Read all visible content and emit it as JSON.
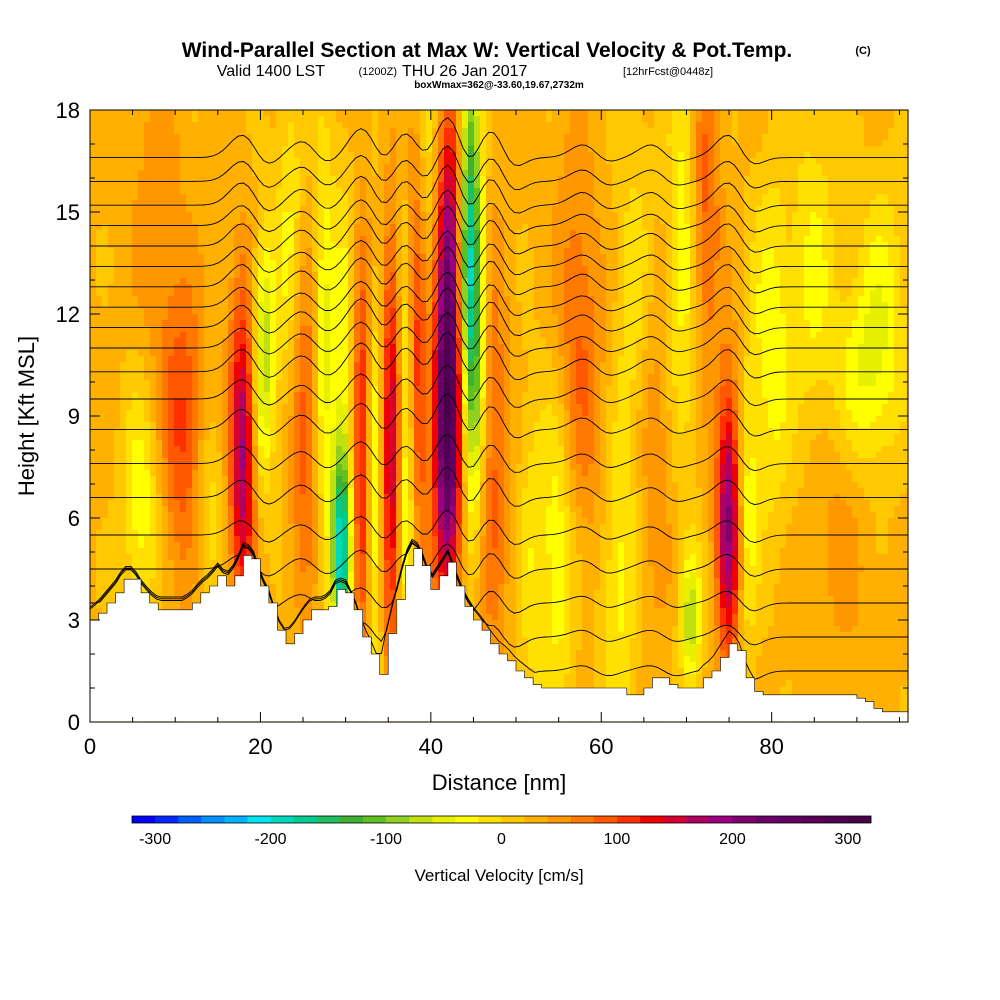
{
  "titles": {
    "main": "Wind-Parallel Section at Max W: Vertical Velocity & Pot.Temp.",
    "copyright": "(C)",
    "valid": "Valid 1400 LST",
    "valid_z": "(1200Z)",
    "valid_day": "THU 26 Jan 2017",
    "forecast": "[12hrFcst@0448z]",
    "box": "boxWmax=362@-33.60,19.67,2732m"
  },
  "chart_data": {
    "type": "heatmap",
    "title": "Wind-Parallel Section at Max W: Vertical Velocity & Pot.Temp.",
    "xlabel": "Distance [nm]",
    "ylabel": "Height [Kft MSL]",
    "xlim": [
      0,
      96
    ],
    "ylim": [
      0,
      18
    ],
    "x_ticks": [
      0,
      20,
      40,
      60,
      80
    ],
    "y_ticks": [
      0,
      3,
      6,
      9,
      12,
      15,
      18
    ],
    "colorbar": {
      "label": "Vertical Velocity [cm/s]",
      "min": -320,
      "max": 320,
      "step": 20,
      "tick_values": [
        -300,
        -200,
        -100,
        0,
        100,
        200,
        300
      ],
      "tick_labels": [
        "-300",
        "-200",
        "-100",
        "0",
        "100",
        "200",
        "300"
      ],
      "colors": [
        "#0000ff",
        "#0028ff",
        "#0060ff",
        "#0090ff",
        "#00b4ff",
        "#00e6f0",
        "#00d8c0",
        "#00cc90",
        "#20c060",
        "#40b030",
        "#60c020",
        "#90d020",
        "#c0e010",
        "#e6f000",
        "#ffff00",
        "#ffe000",
        "#ffc800",
        "#ffb000",
        "#ff9800",
        "#ff7800",
        "#ff5800",
        "#ff3000",
        "#f00000",
        "#d80030",
        "#b00060",
        "#9a0080",
        "#800070",
        "#680068",
        "#600060",
        "#580058",
        "#500050",
        "#480048"
      ]
    },
    "velocity_features": [
      {
        "x": 6,
        "y": 6.5,
        "w": 2.2,
        "h": 3.5,
        "value": -60
      },
      {
        "x": 11,
        "y": 8.5,
        "w": 2.5,
        "h": 4,
        "value": 80
      },
      {
        "x": 14,
        "y": 6.5,
        "w": 2,
        "h": 3,
        "value": -40
      },
      {
        "x": 18,
        "y": 8,
        "w": 1.6,
        "h": 4.5,
        "value": 170
      },
      {
        "x": 19.5,
        "y": 8.5,
        "w": 1.3,
        "h": 4,
        "value": -40
      },
      {
        "x": 20.5,
        "y": 11,
        "w": 1.3,
        "h": 3.5,
        "value": -90
      },
      {
        "x": 23.5,
        "y": 13,
        "w": 1.6,
        "h": 6,
        "value": -60
      },
      {
        "x": 25,
        "y": 9,
        "w": 2,
        "h": 5,
        "value": 80
      },
      {
        "x": 27.5,
        "y": 11,
        "w": 1.3,
        "h": 6,
        "value": -80
      },
      {
        "x": 29.5,
        "y": 5,
        "w": 1.1,
        "h": 3,
        "value": -200
      },
      {
        "x": 30,
        "y": 10,
        "w": 1.3,
        "h": 6,
        "value": -60
      },
      {
        "x": 32,
        "y": 8,
        "w": 1.3,
        "h": 6,
        "value": 120
      },
      {
        "x": 33.3,
        "y": 7,
        "w": 1.0,
        "h": 6,
        "value": -100
      },
      {
        "x": 35.5,
        "y": 8,
        "w": 1.2,
        "h": 6,
        "value": 150
      },
      {
        "x": 37,
        "y": 8,
        "w": 1.2,
        "h": 6,
        "value": -100
      },
      {
        "x": 38.5,
        "y": 11,
        "w": 1.2,
        "h": 6,
        "value": 110
      },
      {
        "x": 39.5,
        "y": 15,
        "w": 1.3,
        "h": 5,
        "value": -50
      },
      {
        "x": 42,
        "y": 9,
        "w": 1.6,
        "h": 5,
        "value": 270
      },
      {
        "x": 42.5,
        "y": 15,
        "w": 1.6,
        "h": 4,
        "value": 110
      },
      {
        "x": 44.5,
        "y": 14,
        "w": 1.3,
        "h": 6,
        "value": -200
      },
      {
        "x": 45.5,
        "y": 10,
        "w": 1.3,
        "h": 5,
        "value": -90
      },
      {
        "x": 47,
        "y": 8,
        "w": 2,
        "h": 6,
        "value": 70
      },
      {
        "x": 52,
        "y": 5,
        "w": 1.8,
        "h": 5,
        "value": -40
      },
      {
        "x": 55,
        "y": 5,
        "w": 1.8,
        "h": 5,
        "value": -60
      },
      {
        "x": 57,
        "y": 12,
        "w": 2.5,
        "h": 5,
        "value": 50
      },
      {
        "x": 62,
        "y": 4,
        "w": 2.2,
        "h": 5,
        "value": -50
      },
      {
        "x": 64,
        "y": 12,
        "w": 2.2,
        "h": 6,
        "value": -40
      },
      {
        "x": 66,
        "y": 8,
        "w": 2.2,
        "h": 5,
        "value": 40
      },
      {
        "x": 70,
        "y": 14,
        "w": 2,
        "h": 6,
        "value": -70
      },
      {
        "x": 70.5,
        "y": 3,
        "w": 1.2,
        "h": 2,
        "value": -100
      },
      {
        "x": 72,
        "y": 15,
        "w": 1.8,
        "h": 5,
        "value": 80
      },
      {
        "x": 75,
        "y": 6,
        "w": 1.4,
        "h": 4,
        "value": 180
      },
      {
        "x": 77,
        "y": 6,
        "w": 1.3,
        "h": 4,
        "value": -60
      },
      {
        "x": 80,
        "y": 11,
        "w": 2.5,
        "h": 5,
        "value": -60
      },
      {
        "x": 85,
        "y": 13,
        "w": 2.5,
        "h": 5,
        "value": -50
      },
      {
        "x": 90,
        "y": 10,
        "w": 3.5,
        "h": 3,
        "value": -60
      },
      {
        "x": 93,
        "y": 12,
        "w": 3,
        "h": 4,
        "value": -50
      },
      {
        "x": 8,
        "y": 14.5,
        "w": 3,
        "h": 5,
        "value": 30
      },
      {
        "x": 59,
        "y": 8.5,
        "w": 2.5,
        "h": 4,
        "value": 25
      },
      {
        "x": 88,
        "y": 7,
        "w": 4,
        "h": 5,
        "value": 30
      }
    ],
    "terrain_profile": {
      "x": [
        0,
        1,
        2,
        3,
        4,
        5,
        6,
        7,
        8,
        9,
        10,
        11,
        12,
        13,
        14,
        15,
        16,
        17,
        18,
        19,
        20,
        21,
        22,
        23,
        24,
        25,
        26,
        27,
        28,
        29,
        30,
        31,
        32,
        33,
        34,
        35,
        36,
        37,
        38,
        39,
        40,
        41,
        42,
        43,
        44,
        45,
        46,
        47,
        48,
        49,
        50,
        51,
        52,
        53,
        54,
        55,
        56,
        57,
        58,
        59,
        60,
        61,
        62,
        63,
        64,
        65,
        66,
        67,
        68,
        69,
        70,
        71,
        72,
        73,
        74,
        75,
        76,
        77,
        78,
        79,
        80,
        81,
        82,
        83,
        84,
        85,
        86,
        87,
        88,
        89,
        90,
        91,
        92,
        93,
        94,
        95,
        96
      ],
      "height": [
        3.0,
        3.2,
        3.5,
        3.8,
        4.2,
        4.2,
        3.8,
        3.5,
        3.3,
        3.3,
        3.3,
        3.3,
        3.5,
        3.8,
        4.0,
        4.3,
        4.0,
        4.3,
        4.9,
        4.8,
        4.0,
        3.5,
        2.7,
        2.3,
        2.6,
        3.0,
        3.3,
        3.3,
        3.4,
        3.9,
        3.8,
        3.3,
        2.5,
        2.0,
        1.4,
        2.6,
        3.6,
        4.6,
        5.1,
        4.6,
        3.9,
        4.3,
        4.7,
        4.0,
        3.4,
        3.0,
        2.7,
        2.3,
        2.0,
        1.8,
        1.5,
        1.3,
        1.1,
        1.0,
        1.0,
        1.0,
        1.0,
        1.0,
        1.0,
        1.0,
        1.0,
        1.0,
        1.0,
        0.8,
        0.8,
        1.0,
        1.3,
        1.3,
        1.1,
        1.0,
        1.0,
        1.0,
        1.3,
        1.5,
        1.9,
        2.3,
        2.1,
        1.3,
        0.9,
        0.8,
        0.8,
        0.8,
        0.8,
        0.8,
        0.8,
        0.8,
        0.8,
        0.8,
        0.8,
        0.8,
        0.7,
        0.6,
        0.4,
        0.3,
        0.3,
        0.3,
        0.3
      ]
    },
    "theta_contours": {
      "interval": 2,
      "levels": [
        294,
        296,
        298,
        300,
        302,
        304,
        306,
        308,
        310,
        312,
        314,
        316,
        318,
        320,
        322,
        324,
        326,
        328,
        330,
        332
      ],
      "base_heights": [
        1.5,
        2.5,
        3.5,
        4.5,
        5.5,
        6.6,
        7.6,
        8.6,
        9.5,
        10.3,
        11.0,
        11.6,
        12.2,
        12.8,
        13.4,
        14.0,
        14.6,
        15.2,
        15.9,
        16.6
      ],
      "wave_crests": [
        {
          "x": 18,
          "amplitude": 0.7
        },
        {
          "x": 25,
          "amplitude": 0.5
        },
        {
          "x": 32,
          "amplitude": 0.9
        },
        {
          "x": 37,
          "amplitude": 0.8
        },
        {
          "x": 42,
          "amplitude": 1.3
        },
        {
          "x": 47,
          "amplitude": 0.9
        },
        {
          "x": 58,
          "amplitude": 0.4
        },
        {
          "x": 66,
          "amplitude": 0.4
        },
        {
          "x": 75,
          "amplitude": 0.7
        }
      ]
    }
  }
}
